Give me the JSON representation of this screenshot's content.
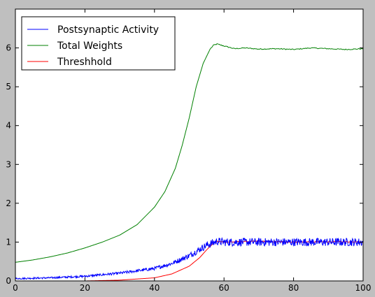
{
  "chart_data": {
    "type": "line",
    "title": "",
    "xlabel": "",
    "ylabel": "",
    "xlim": [
      0,
      100
    ],
    "ylim": [
      0,
      7
    ],
    "xticks": [
      "0",
      "20",
      "40",
      "60",
      "80",
      "100"
    ],
    "yticks": [
      "0",
      "1",
      "2",
      "3",
      "4",
      "5",
      "6"
    ],
    "grid": false,
    "legend_position": "top-left",
    "series": [
      {
        "name": "Postsynaptic Activity",
        "color": "#0000ff",
        "noisy": true,
        "x": [
          0,
          10,
          20,
          30,
          40,
          45,
          50,
          55,
          58,
          60,
          70,
          80,
          90,
          100
        ],
        "y": [
          0.06,
          0.08,
          0.12,
          0.2,
          0.32,
          0.45,
          0.65,
          0.92,
          1.02,
          1.0,
          1.0,
          1.0,
          1.0,
          1.0
        ]
      },
      {
        "name": "Total Weights",
        "color": "#008000",
        "noisy": false,
        "x": [
          0,
          5,
          10,
          15,
          20,
          25,
          30,
          35,
          40,
          43,
          46,
          48,
          50,
          52,
          54,
          56,
          57,
          58,
          60,
          63,
          66,
          70,
          75,
          80,
          85,
          90,
          95,
          100
        ],
        "y": [
          0.48,
          0.54,
          0.62,
          0.72,
          0.85,
          1.0,
          1.18,
          1.45,
          1.9,
          2.3,
          2.9,
          3.5,
          4.2,
          5.0,
          5.6,
          5.97,
          6.07,
          6.1,
          6.05,
          5.98,
          6.0,
          5.97,
          5.98,
          5.96,
          6.0,
          5.98,
          5.96,
          5.98
        ]
      },
      {
        "name": "Threshhold",
        "color": "#ff0000",
        "noisy": false,
        "x": [
          0,
          20,
          30,
          40,
          45,
          50,
          53,
          55,
          57,
          58,
          60,
          70,
          80,
          90,
          100
        ],
        "y": [
          0.0,
          0.0,
          0.02,
          0.08,
          0.18,
          0.38,
          0.6,
          0.8,
          0.98,
          1.02,
          1.0,
          1.02,
          1.0,
          1.01,
          1.0
        ]
      }
    ]
  }
}
